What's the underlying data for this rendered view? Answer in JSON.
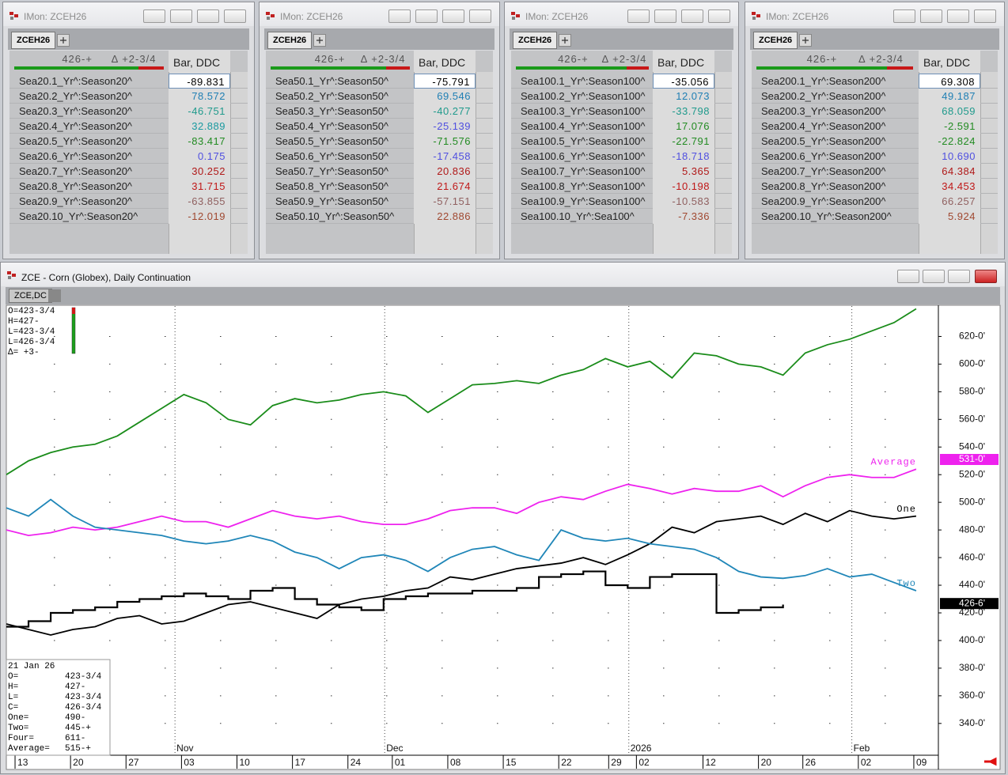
{
  "windows": [
    {
      "title": "IMon: ZCEH26",
      "tab": "ZCEH26",
      "last": "426-+",
      "change": "Δ +2-3/4",
      "column": "Bar, DDC",
      "rows": [
        {
          "label": "Sea20.1_Yr^:Season20^",
          "value": "-89.831",
          "color": "#000000"
        },
        {
          "label": "Sea20.2_Yr^:Season20^",
          "value": "78.572",
          "color": "#1f7fb4"
        },
        {
          "label": "Sea20.3_Yr^:Season20^",
          "value": "-46.751",
          "color": "#1f9a8c"
        },
        {
          "label": "Sea20.4_Yr^:Season20^",
          "value": "32.889",
          "color": "#1a9aa0"
        },
        {
          "label": "Sea20.5_Yr^:Season20^",
          "value": "-83.417",
          "color": "#228b22"
        },
        {
          "label": "Sea20.6_Yr^:Season20^",
          "value": "0.175",
          "color": "#5050e0"
        },
        {
          "label": "Sea20.7_Yr^:Season20^",
          "value": "30.252",
          "color": "#b01818"
        },
        {
          "label": "Sea20.8_Yr^:Season20^",
          "value": "31.715",
          "color": "#c01818"
        },
        {
          "label": "Sea20.9_Yr^:Season20^",
          "value": "-63.855",
          "color": "#906060"
        },
        {
          "label": "Sea20.10_Yr^:Season20^",
          "value": "-12.019",
          "color": "#a04830"
        }
      ]
    },
    {
      "title": "IMon: ZCEH26",
      "tab": "ZCEH26",
      "last": "426-+",
      "change": "Δ +2-3/4",
      "column": "Bar, DDC",
      "rows": [
        {
          "label": "Sea50.1_Yr^:Season50^",
          "value": "-75.791",
          "color": "#000000"
        },
        {
          "label": "Sea50.2_Yr^:Season50^",
          "value": "69.546",
          "color": "#1f7fb4"
        },
        {
          "label": "Sea50.3_Yr^:Season50^",
          "value": "-40.277",
          "color": "#1f9a8c"
        },
        {
          "label": "Sea50.4_Yr^:Season50^",
          "value": "-25.139",
          "color": "#5050e0"
        },
        {
          "label": "Sea50.5_Yr^:Season50^",
          "value": "-71.576",
          "color": "#228b22"
        },
        {
          "label": "Sea50.6_Yr^:Season50^",
          "value": "-17.458",
          "color": "#5050e0"
        },
        {
          "label": "Sea50.7_Yr^:Season50^",
          "value": "20.836",
          "color": "#b01818"
        },
        {
          "label": "Sea50.8_Yr^:Season50^",
          "value": "21.674",
          "color": "#c01818"
        },
        {
          "label": "Sea50.9_Yr^:Season50^",
          "value": "-57.151",
          "color": "#906060"
        },
        {
          "label": "Sea50.10_Yr^:Season50^",
          "value": "22.886",
          "color": "#a04830"
        }
      ]
    },
    {
      "title": "IMon: ZCEH26",
      "tab": "ZCEH26",
      "last": "426-+",
      "change": "Δ +2-3/4",
      "column": "Bar, DDC",
      "rows": [
        {
          "label": "Sea100.1_Yr^:Season100^",
          "value": "-35.056",
          "color": "#000000"
        },
        {
          "label": "Sea100.2_Yr^:Season100^",
          "value": "12.073",
          "color": "#1f7fb4"
        },
        {
          "label": "Sea100.3_Yr^:Season100^",
          "value": "-33.798",
          "color": "#1f9a8c"
        },
        {
          "label": "Sea100.4_Yr^:Season100^",
          "value": "17.076",
          "color": "#228b22"
        },
        {
          "label": "Sea100.5_Yr^:Season100^",
          "value": "-22.791",
          "color": "#228b22"
        },
        {
          "label": "Sea100.6_Yr^:Season100^",
          "value": "-18.718",
          "color": "#5050e0"
        },
        {
          "label": "Sea100.7_Yr^:Season100^",
          "value": "5.365",
          "color": "#b01818"
        },
        {
          "label": "Sea100.8_Yr^:Season100^",
          "value": "-10.198",
          "color": "#c01818"
        },
        {
          "label": "Sea100.9_Yr^:Season100^",
          "value": "-10.583",
          "color": "#906060"
        },
        {
          "label": "Sea100.10_Yr^:Sea100^",
          "value": "-7.336",
          "color": "#a04830"
        }
      ]
    },
    {
      "title": "IMon: ZCEH26",
      "tab": "ZCEH26",
      "last": "426-+",
      "change": "Δ +2-3/4",
      "column": "Bar, DDC",
      "rows": [
        {
          "label": "Sea200.1_Yr^:Season200^",
          "value": "69.308",
          "color": "#000000"
        },
        {
          "label": "Sea200.2_Yr^:Season200^",
          "value": "49.187",
          "color": "#1f7fb4"
        },
        {
          "label": "Sea200.3_Yr^:Season200^",
          "value": "68.059",
          "color": "#1f9a8c"
        },
        {
          "label": "Sea200.4_Yr^:Season200^",
          "value": "-2.591",
          "color": "#228b22"
        },
        {
          "label": "Sea200.5_Yr^:Season200^",
          "value": "-22.824",
          "color": "#228b22"
        },
        {
          "label": "Sea200.6_Yr^:Season200^",
          "value": "10.690",
          "color": "#5050e0"
        },
        {
          "label": "Sea200.7_Yr^:Season200^",
          "value": "64.384",
          "color": "#b01818"
        },
        {
          "label": "Sea200.8_Yr^:Season200^",
          "value": "34.453",
          "color": "#c01818"
        },
        {
          "label": "Sea200.9_Yr^:Season200^",
          "value": "66.257",
          "color": "#906060"
        },
        {
          "label": "Sea200.10_Yr^:Season200^",
          "value": "5.924",
          "color": "#a04830"
        }
      ]
    }
  ],
  "chart_window": {
    "title": "ZCE - Corn (Globex), Daily Continuation",
    "tab": "ZCE,DC"
  },
  "chart_data": {
    "type": "line",
    "x": [
      0,
      2,
      4,
      6,
      8,
      10,
      12,
      14,
      16,
      18,
      20,
      22,
      24,
      26,
      28,
      30,
      32,
      34,
      36,
      38,
      40,
      42,
      44,
      46,
      48,
      50,
      52,
      54,
      56,
      58,
      60,
      62,
      64,
      66,
      68,
      70,
      72,
      74,
      76,
      78,
      80,
      82
    ],
    "xlim": [
      0,
      84
    ],
    "xticks": [
      {
        "value": 1,
        "label": "13"
      },
      {
        "value": 6,
        "label": "20"
      },
      {
        "value": 11,
        "label": "27"
      },
      {
        "value": 16,
        "label": "03"
      },
      {
        "value": 21,
        "label": "10"
      },
      {
        "value": 26,
        "label": "17"
      },
      {
        "value": 31,
        "label": "24"
      },
      {
        "value": 35,
        "label": "01"
      },
      {
        "value": 40,
        "label": "08"
      },
      {
        "value": 45,
        "label": "15"
      },
      {
        "value": 50,
        "label": "22"
      },
      {
        "value": 54.5,
        "label": "29"
      },
      {
        "value": 57,
        "label": "02"
      },
      {
        "value": 63,
        "label": "12"
      },
      {
        "value": 68,
        "label": "20"
      },
      {
        "value": 72,
        "label": "26"
      },
      {
        "value": 77,
        "label": "02"
      },
      {
        "value": 82,
        "label": "09"
      }
    ],
    "period_labels": [
      {
        "value": 15.2,
        "label": "Nov"
      },
      {
        "value": 34.1,
        "label": "Dec"
      },
      {
        "value": 56.1,
        "label": "2026"
      },
      {
        "value": 76.2,
        "label": "Feb"
      }
    ],
    "ylim": [
      317,
      642
    ],
    "yticks": [
      {
        "value": 340,
        "label": "340-0'"
      },
      {
        "value": 360,
        "label": "360-0'"
      },
      {
        "value": 380,
        "label": "380-0'"
      },
      {
        "value": 400,
        "label": "400-0'"
      },
      {
        "value": 420,
        "label": "420-0'"
      },
      {
        "value": 440,
        "label": "440-0'"
      },
      {
        "value": 460,
        "label": "460-0'"
      },
      {
        "value": 480,
        "label": "480-0'"
      },
      {
        "value": 500,
        "label": "500-0'"
      },
      {
        "value": 520,
        "label": "520-0'"
      },
      {
        "value": 540,
        "label": "540-0'"
      },
      {
        "value": 560,
        "label": "560-0'"
      },
      {
        "value": 580,
        "label": "580-0'"
      },
      {
        "value": 600,
        "label": "600-0'"
      },
      {
        "value": 620,
        "label": "620-0'"
      }
    ],
    "grid": true,
    "series": [
      {
        "color": "#1a8c1a",
        "values": [
          520,
          530,
          536,
          540,
          542,
          548,
          558,
          568,
          578,
          572,
          560,
          556,
          570,
          575,
          572,
          574,
          578,
          580,
          577,
          565,
          575,
          585,
          586,
          588,
          586,
          592,
          596,
          604,
          598,
          602,
          590,
          608,
          606,
          600,
          598,
          592,
          608,
          614,
          618,
          624,
          630,
          640
        ]
      },
      {
        "name": "Average",
        "color": "#ee22ee",
        "values": [
          480,
          476,
          478,
          482,
          480,
          482,
          486,
          490,
          486,
          486,
          482,
          488,
          494,
          490,
          488,
          490,
          486,
          484,
          484,
          488,
          494,
          496,
          496,
          492,
          500,
          504,
          502,
          508,
          513,
          510,
          506,
          510,
          508,
          508,
          512,
          504,
          512,
          518,
          520,
          518,
          518,
          524
        ]
      },
      {
        "name": "One",
        "color": "#000000",
        "values": [
          412,
          408,
          404,
          408,
          410,
          416,
          418,
          412,
          414,
          420,
          426,
          428,
          424,
          420,
          416,
          426,
          430,
          432,
          436,
          438,
          446,
          444,
          448,
          452,
          454,
          456,
          460,
          455,
          462,
          470,
          482,
          478,
          486,
          488,
          490,
          484,
          492,
          486,
          494,
          490,
          488,
          490
        ]
      },
      {
        "name": "Two",
        "color": "#1f86b8",
        "values": [
          496,
          490,
          502,
          490,
          482,
          480,
          478,
          476,
          472,
          470,
          472,
          476,
          472,
          464,
          460,
          452,
          460,
          462,
          458,
          450,
          460,
          466,
          468,
          462,
          458,
          480,
          474,
          472,
          474,
          470,
          468,
          466,
          460,
          450,
          446,
          445,
          447,
          452,
          446,
          448,
          442,
          436
        ]
      },
      {
        "color": "#000000",
        "step": true,
        "values": [
          410,
          414,
          420,
          422,
          424,
          428,
          430,
          432,
          434,
          432,
          430,
          436,
          438,
          430,
          426,
          424,
          422,
          430,
          432,
          434,
          434,
          436,
          436,
          438,
          446,
          448,
          450,
          440,
          438,
          446,
          448,
          448,
          420,
          422,
          424,
          426,
          null,
          null,
          null,
          null,
          null,
          null
        ]
      }
    ],
    "value_tags": [
      {
        "value": 531,
        "label": "531-0'",
        "color": "#ee22ee"
      },
      {
        "value": 426.75,
        "label": "426-6'",
        "color": "#000000"
      }
    ],
    "bar_readout": [
      "O=423-3/4",
      "H=427-",
      "L=423-3/4",
      "L=426-3/4",
      "Δ= +3-"
    ],
    "data_box": {
      "date": "21 Jan 26",
      "rows": [
        [
          "O=",
          "423-3/4"
        ],
        [
          "H=",
          "427-"
        ],
        [
          "L=",
          "423-3/4"
        ],
        [
          "C=",
          "426-3/4"
        ],
        [
          "One=",
          "490-"
        ],
        [
          "Two=",
          "445-+"
        ],
        [
          "Four=",
          "611-"
        ],
        [
          "Average=",
          "515-+"
        ]
      ]
    }
  }
}
